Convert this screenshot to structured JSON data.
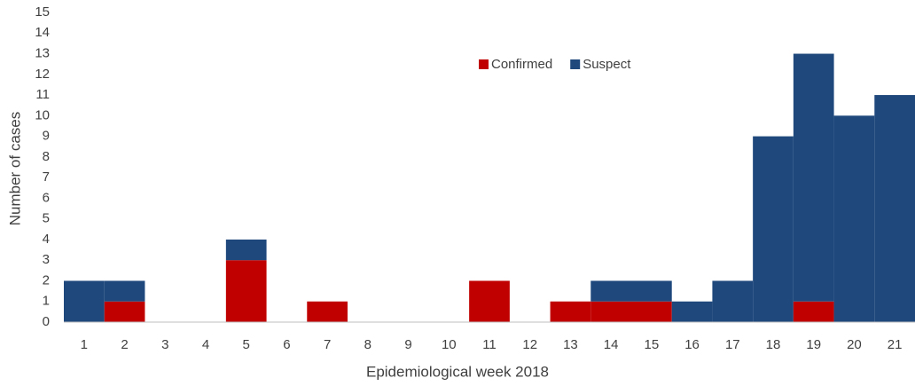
{
  "chart_data": {
    "type": "bar",
    "stacked": true,
    "xlabel": "Epidemiological week 2018",
    "ylabel": "Number of cases",
    "categories": [
      "1",
      "2",
      "3",
      "4",
      "5",
      "6",
      "7",
      "8",
      "9",
      "10",
      "11",
      "12",
      "13",
      "14",
      "15",
      "16",
      "17",
      "18",
      "19",
      "20",
      "21"
    ],
    "series": [
      {
        "name": "Confirmed",
        "color": "#c00000",
        "values": [
          0,
          1,
          0,
          0,
          3,
          0,
          1,
          0,
          0,
          0,
          2,
          0,
          1,
          1,
          1,
          0,
          0,
          0,
          1,
          0,
          0
        ]
      },
      {
        "name": "Suspect",
        "color": "#1f497d",
        "values": [
          2,
          1,
          0,
          0,
          1,
          0,
          0,
          0,
          0,
          0,
          0,
          0,
          0,
          1,
          1,
          1,
          2,
          9,
          12,
          10,
          11
        ]
      }
    ],
    "ylim": [
      0,
      15
    ],
    "yticks": [
      0,
      1,
      2,
      3,
      4,
      5,
      6,
      7,
      8,
      9,
      10,
      11,
      12,
      13,
      14,
      15
    ],
    "grid": false,
    "legend": "top"
  }
}
